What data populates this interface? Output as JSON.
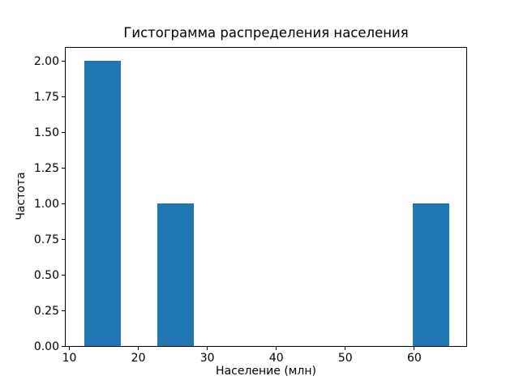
{
  "chart_data": {
    "type": "bar",
    "variant": "histogram",
    "title": "Гистограмма распределения населения",
    "xlabel": "Население (млн)",
    "ylabel": "Частота",
    "bar_color": "#1f77b4",
    "axis_color": "#000000",
    "background_color": "#ffffff",
    "grid": false,
    "legend": null,
    "xlim": [
      9.35,
      67.65
    ],
    "ylim": [
      0,
      2.1
    ],
    "x_ticks": [
      {
        "value": 10,
        "label": "10"
      },
      {
        "value": 20,
        "label": "20"
      },
      {
        "value": 30,
        "label": "30"
      },
      {
        "value": 40,
        "label": "40"
      },
      {
        "value": 50,
        "label": "50"
      },
      {
        "value": 60,
        "label": "60"
      }
    ],
    "y_ticks": [
      {
        "value": 0.0,
        "label": "0.00"
      },
      {
        "value": 0.25,
        "label": "0.25"
      },
      {
        "value": 0.5,
        "label": "0.50"
      },
      {
        "value": 0.75,
        "label": "0.75"
      },
      {
        "value": 1.0,
        "label": "1.00"
      },
      {
        "value": 1.25,
        "label": "1.25"
      },
      {
        "value": 1.5,
        "label": "1.50"
      },
      {
        "value": 1.75,
        "label": "1.75"
      },
      {
        "value": 2.0,
        "label": "2.00"
      }
    ],
    "bins": [
      {
        "x_start": 12.0,
        "x_end": 17.3,
        "frequency": 2
      },
      {
        "x_start": 22.6,
        "x_end": 27.9,
        "frequency": 1
      },
      {
        "x_start": 59.7,
        "x_end": 65.0,
        "frequency": 1
      }
    ]
  }
}
